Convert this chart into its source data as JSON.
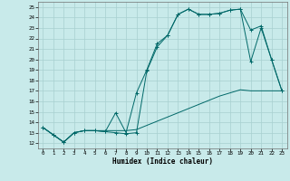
{
  "xlabel": "Humidex (Indice chaleur)",
  "bg_color": "#c8eaea",
  "grid_color": "#a8d0d0",
  "line_color": "#006868",
  "xlim": [
    -0.5,
    23.5
  ],
  "ylim": [
    11.5,
    25.5
  ],
  "xticks": [
    0,
    1,
    2,
    3,
    4,
    5,
    6,
    7,
    8,
    9,
    10,
    11,
    12,
    13,
    14,
    15,
    16,
    17,
    18,
    19,
    20,
    21,
    22,
    23
  ],
  "yticks": [
    12,
    13,
    14,
    15,
    16,
    17,
    18,
    19,
    20,
    21,
    22,
    23,
    24,
    25
  ],
  "line1_x": [
    0,
    1,
    2,
    3,
    4,
    5,
    6,
    7,
    8,
    9,
    10,
    11,
    12,
    13,
    14,
    15,
    16,
    17,
    18,
    19,
    20,
    21,
    22,
    23
  ],
  "line1_y": [
    13.5,
    12.8,
    12.1,
    13.0,
    13.2,
    13.2,
    13.1,
    13.0,
    12.9,
    13.0,
    18.9,
    21.2,
    22.3,
    24.3,
    24.8,
    24.3,
    24.3,
    24.4,
    24.7,
    24.8,
    19.8,
    23.0,
    20.0,
    17.0
  ],
  "line2_x": [
    0,
    1,
    2,
    3,
    4,
    5,
    6,
    7,
    8,
    9,
    10,
    11,
    12,
    13,
    14,
    15,
    16,
    17,
    18,
    19,
    20,
    21,
    22,
    23
  ],
  "line2_y": [
    13.5,
    12.8,
    12.1,
    13.0,
    13.2,
    13.2,
    13.1,
    14.9,
    13.0,
    16.8,
    19.0,
    21.5,
    22.3,
    24.3,
    24.8,
    24.3,
    24.3,
    24.4,
    24.7,
    24.8,
    22.8,
    23.2,
    20.0,
    17.0
  ],
  "line3_x": [
    0,
    1,
    2,
    3,
    4,
    5,
    6,
    7,
    8,
    9,
    10,
    11,
    12,
    13,
    14,
    15,
    16,
    17,
    18,
    19,
    20,
    21,
    22,
    23
  ],
  "line3_y": [
    13.5,
    12.8,
    12.1,
    13.0,
    13.2,
    13.2,
    13.2,
    13.2,
    13.2,
    13.3,
    13.7,
    14.1,
    14.5,
    14.9,
    15.3,
    15.7,
    16.1,
    16.5,
    16.8,
    17.1,
    17.0,
    17.0,
    17.0,
    17.0
  ]
}
